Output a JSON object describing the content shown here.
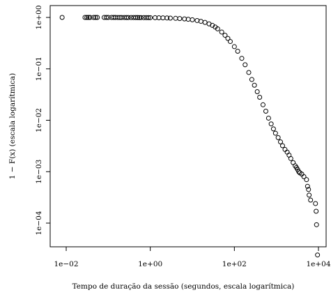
{
  "chart_data": {
    "type": "scatter",
    "title": "",
    "xlabel": "Tempo de duração da sessão (segundos, escala logarítmica)",
    "ylabel": "1 − F(x) (escala logarítmica)",
    "x_scale": "log10",
    "y_scale": "log10",
    "xlim": [
      0.005,
      15000
    ],
    "ylim": [
      1e-05,
      1.2
    ],
    "x_ticks": [
      0.01,
      1,
      100,
      10000
    ],
    "x_tick_labels": [
      "1e−02",
      "1e+00",
      "1e+02",
      "1e+04"
    ],
    "y_ticks": [
      1,
      0.1,
      0.01,
      0.001,
      0.0001
    ],
    "y_tick_labels": [
      "1e+00",
      "1e−01",
      "1e−02",
      "1e−03",
      "1e−04"
    ],
    "marker": "open-circle",
    "marker_color": "#000000",
    "grid": false,
    "legend": "none",
    "points": [
      [
        0.008,
        1.0
      ],
      [
        0.028,
        1.0
      ],
      [
        0.031,
        1.0
      ],
      [
        0.034,
        1.0
      ],
      [
        0.037,
        1.0
      ],
      [
        0.045,
        1.0
      ],
      [
        0.05,
        1.0
      ],
      [
        0.055,
        1.0
      ],
      [
        0.08,
        1.0
      ],
      [
        0.09,
        0.999
      ],
      [
        0.1,
        0.999
      ],
      [
        0.12,
        0.999
      ],
      [
        0.135,
        0.999
      ],
      [
        0.15,
        0.999
      ],
      [
        0.17,
        0.998
      ],
      [
        0.19,
        0.998
      ],
      [
        0.21,
        0.998
      ],
      [
        0.24,
        0.998
      ],
      [
        0.27,
        0.997
      ],
      [
        0.3,
        0.997
      ],
      [
        0.35,
        0.996
      ],
      [
        0.4,
        0.996
      ],
      [
        0.45,
        0.995
      ],
      [
        0.5,
        0.995
      ],
      [
        0.55,
        0.994
      ],
      [
        0.6,
        0.994
      ],
      [
        0.7,
        0.993
      ],
      [
        0.8,
        0.992
      ],
      [
        0.9,
        0.991
      ],
      [
        1.0,
        0.99
      ],
      [
        1.3,
        0.987
      ],
      [
        1.6,
        0.984
      ],
      [
        2.0,
        0.98
      ],
      [
        2.5,
        0.975
      ],
      [
        3.0,
        0.97
      ],
      [
        4.0,
        0.96
      ],
      [
        5.0,
        0.95
      ],
      [
        6.5,
        0.935
      ],
      [
        8.0,
        0.92
      ],
      [
        10,
        0.9
      ],
      [
        13,
        0.87
      ],
      [
        16,
        0.84
      ],
      [
        20,
        0.8
      ],
      [
        25,
        0.75
      ],
      [
        30,
        0.7
      ],
      [
        35,
        0.65
      ],
      [
        40,
        0.6
      ],
      [
        50,
        0.52
      ],
      [
        60,
        0.45
      ],
      [
        70,
        0.39
      ],
      [
        80,
        0.34
      ],
      [
        100,
        0.27
      ],
      [
        120,
        0.22
      ],
      [
        150,
        0.16
      ],
      [
        180,
        0.12
      ],
      [
        220,
        0.085
      ],
      [
        260,
        0.062
      ],
      [
        300,
        0.048
      ],
      [
        350,
        0.036
      ],
      [
        400,
        0.028
      ],
      [
        480,
        0.02
      ],
      [
        560,
        0.015
      ],
      [
        650,
        0.011
      ],
      [
        750,
        0.0085
      ],
      [
        850,
        0.0068
      ],
      [
        950,
        0.0056
      ],
      [
        1100,
        0.0046
      ],
      [
        1250,
        0.0038
      ],
      [
        1400,
        0.0032
      ],
      [
        1600,
        0.0027
      ],
      [
        1800,
        0.0024
      ],
      [
        2000,
        0.0021
      ],
      [
        2200,
        0.0018
      ],
      [
        2500,
        0.0015
      ],
      [
        2800,
        0.0013
      ],
      [
        3000,
        0.0012
      ],
      [
        3200,
        0.0011
      ],
      [
        3400,
        0.001
      ],
      [
        3600,
        0.00095
      ],
      [
        4000,
        0.0009
      ],
      [
        4500,
        0.0008
      ],
      [
        5200,
        0.0007
      ],
      [
        5500,
        0.00052
      ],
      [
        5800,
        0.00045
      ],
      [
        6000,
        0.00035
      ],
      [
        6500,
        0.00028
      ],
      [
        8500,
        0.00024
      ],
      [
        8800,
        0.00017
      ],
      [
        9000,
        9.3e-05
      ],
      [
        9500,
        2.4e-05
      ]
    ]
  }
}
